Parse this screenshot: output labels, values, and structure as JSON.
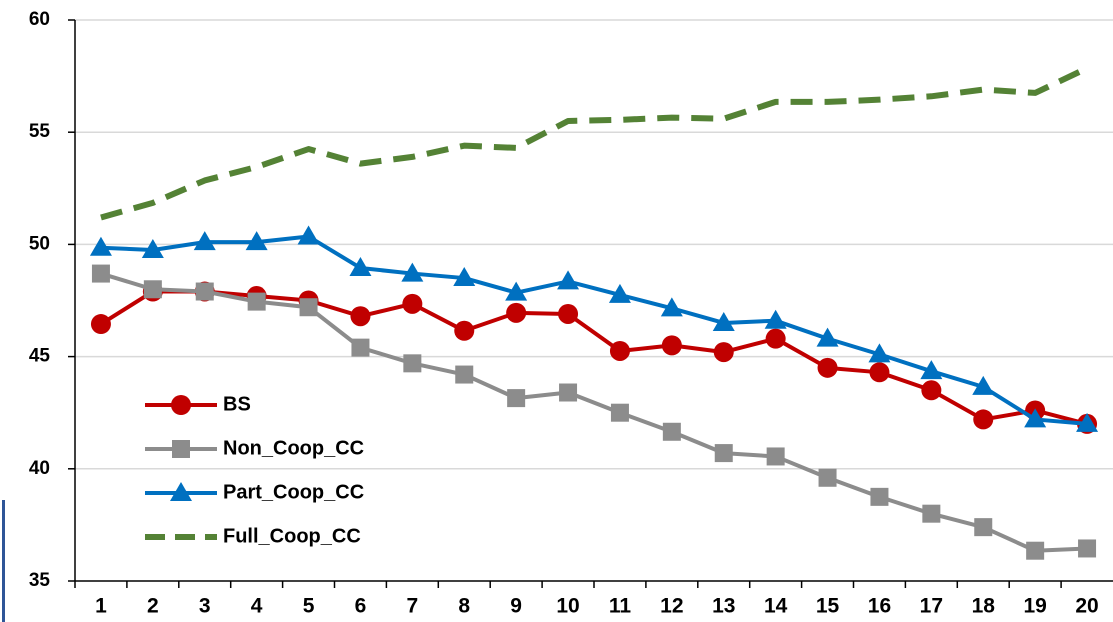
{
  "chart_data": {
    "type": "line",
    "categories": [
      "1",
      "2",
      "3",
      "4",
      "5",
      "6",
      "7",
      "8",
      "9",
      "10",
      "11",
      "12",
      "13",
      "14",
      "15",
      "16",
      "17",
      "18",
      "19",
      "20"
    ],
    "series": [
      {
        "name": "BS",
        "color": "#c00000",
        "marker": "circle",
        "dashed": false,
        "values": [
          46.45,
          47.9,
          47.9,
          47.7,
          47.5,
          46.8,
          47.35,
          46.15,
          46.95,
          46.9,
          45.25,
          45.5,
          45.2,
          45.8,
          44.5,
          44.3,
          43.5,
          42.2,
          42.6,
          42.0
        ]
      },
      {
        "name": "Non_Coop_CC",
        "color": "#8c8c8c",
        "marker": "square",
        "dashed": false,
        "values": [
          48.7,
          48.0,
          47.9,
          47.45,
          47.2,
          45.4,
          44.7,
          44.2,
          43.15,
          43.4,
          42.5,
          41.65,
          40.7,
          40.55,
          39.6,
          38.75,
          38.0,
          37.4,
          36.35,
          36.45
        ]
      },
      {
        "name": "Part_Coop_CC",
        "color": "#0070c0",
        "marker": "triangle",
        "dashed": false,
        "values": [
          49.85,
          49.75,
          50.1,
          50.1,
          50.35,
          48.95,
          48.7,
          48.5,
          47.85,
          48.35,
          47.75,
          47.15,
          46.5,
          46.6,
          45.8,
          45.1,
          44.35,
          43.65,
          42.2,
          42.0
        ]
      },
      {
        "name": "Full_Coop_CC",
        "color": "#548235",
        "marker": "none",
        "dashed": true,
        "values": [
          51.2,
          51.85,
          52.85,
          53.45,
          54.25,
          53.6,
          53.9,
          54.4,
          54.3,
          55.5,
          55.55,
          55.65,
          55.6,
          56.35,
          56.35,
          56.45,
          56.6,
          56.9,
          56.75,
          57.85
        ]
      }
    ],
    "ylim": [
      35,
      60
    ],
    "yticks": [
      35,
      40,
      45,
      50,
      55,
      60
    ],
    "grid": true,
    "legend": "lower left"
  }
}
